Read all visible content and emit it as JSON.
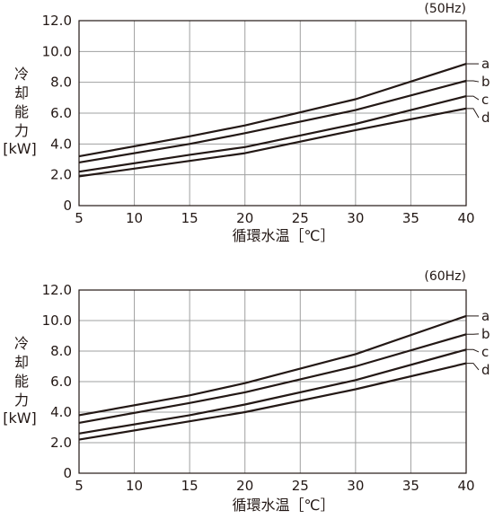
{
  "chart_data": [
    {
      "type": "line",
      "frequency_label": "(50Hz)",
      "ylabel": "冷却能力",
      "yunit": "[kW]",
      "xlabel": "循環水温［℃］",
      "xlim": [
        5,
        40
      ],
      "ylim": [
        0,
        12
      ],
      "x_ticks": [
        "5",
        "10",
        "15",
        "20",
        "25",
        "30",
        "35",
        "40"
      ],
      "y_ticks": [
        "0",
        "2.0",
        "4.0",
        "6.0",
        "8.0",
        "10.0",
        "12.0"
      ],
      "grid": true,
      "series": [
        {
          "name": "a",
          "x": [
            5,
            15,
            20,
            30,
            40
          ],
          "y": [
            3.2,
            4.5,
            5.2,
            6.9,
            9.2
          ]
        },
        {
          "name": "b",
          "x": [
            5,
            15,
            20,
            30,
            40
          ],
          "y": [
            2.8,
            4.0,
            4.7,
            6.2,
            8.1
          ]
        },
        {
          "name": "c",
          "x": [
            5,
            15,
            20,
            30,
            40
          ],
          "y": [
            2.2,
            3.3,
            3.8,
            5.3,
            7.1
          ]
        },
        {
          "name": "d",
          "x": [
            5,
            15,
            20,
            30,
            40
          ],
          "y": [
            1.9,
            2.9,
            3.4,
            4.9,
            6.3
          ]
        }
      ]
    },
    {
      "type": "line",
      "frequency_label": "(60Hz)",
      "ylabel": "冷却能力",
      "yunit": "[kW]",
      "xlabel": "循環水温［℃］",
      "xlim": [
        5,
        40
      ],
      "ylim": [
        0,
        12
      ],
      "x_ticks": [
        "5",
        "10",
        "15",
        "20",
        "25",
        "30",
        "35",
        "40"
      ],
      "y_ticks": [
        "0",
        "2.0",
        "4.0",
        "6.0",
        "8.0",
        "10.0",
        "12.0"
      ],
      "grid": true,
      "series": [
        {
          "name": "a",
          "x": [
            5,
            15,
            20,
            30,
            40
          ],
          "y": [
            3.8,
            5.1,
            5.9,
            7.8,
            10.3
          ]
        },
        {
          "name": "b",
          "x": [
            5,
            15,
            20,
            30,
            40
          ],
          "y": [
            3.3,
            4.6,
            5.3,
            7.0,
            9.1
          ]
        },
        {
          "name": "c",
          "x": [
            5,
            15,
            20,
            30,
            40
          ],
          "y": [
            2.6,
            3.8,
            4.5,
            6.1,
            8.1
          ]
        },
        {
          "name": "d",
          "x": [
            5,
            15,
            20,
            30,
            40
          ],
          "y": [
            2.2,
            3.4,
            4.0,
            5.5,
            7.2
          ]
        }
      ]
    }
  ]
}
